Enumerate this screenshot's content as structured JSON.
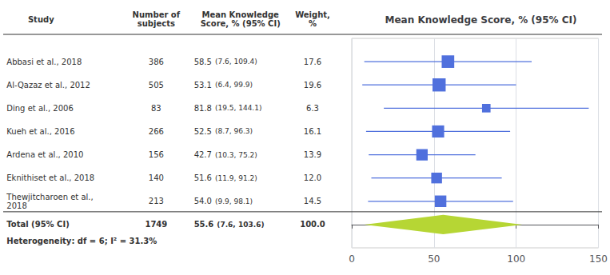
{
  "chart_data": {
    "type": "forest",
    "title": "Mean Knowledge Score, % (95% CI)",
    "columns": [
      "Study",
      "Number of\nsubjects",
      "Mean Knowledge\nScore, % (95% CI)",
      "Weight,\n%"
    ],
    "categories": [
      "Abbasi et al., 2018",
      "Al-Qazaz et al., 2012",
      "Ding et al., 2006",
      "Kueh et al., 2016",
      "Ardena et al., 2010",
      "Eknithiset et al., 2018",
      "Thewjitcharoen et al.,\n2018"
    ],
    "n": [
      386,
      505,
      83,
      266,
      156,
      140,
      213
    ],
    "values": [
      58.5,
      53.1,
      81.8,
      52.5,
      42.7,
      51.6,
      54.0
    ],
    "value_labels": [
      "58.5",
      "53.1",
      "81.8",
      "52.5",
      "42.7",
      "51.6",
      "54.0"
    ],
    "ci_low": [
      7.6,
      6.4,
      19.5,
      8.7,
      10.3,
      11.9,
      9.9
    ],
    "ci_high": [
      109.4,
      99.9,
      144.1,
      96.3,
      75.2,
      91.2,
      98.1
    ],
    "ci_labels": [
      "(7.6, 109.4)",
      "(6.4, 99.9)",
      "(19.5, 144.1)",
      "(8.7, 96.3)",
      "(10.3, 75.2)",
      "(11.9, 91.2)",
      "(9.9, 98.1)"
    ],
    "weights": [
      17.6,
      19.6,
      6.3,
      16.1,
      13.9,
      12.0,
      14.5
    ],
    "weight_labels": [
      "17.6",
      "19.6",
      "6.3",
      "16.1",
      "13.9",
      "12.0",
      "14.5"
    ],
    "total": {
      "label": "Total (95% CI)",
      "n": 1749,
      "value": 55.6,
      "value_label": "55.6",
      "ci_low": 7.6,
      "ci_high": 103.6,
      "ci_label": "(7.6, 103.6)",
      "weight_label": "100.0"
    },
    "heterogeneity": "Heterogeneity: df = 6; I² = 31.3%",
    "xlim": [
      0,
      150
    ],
    "xticks": [
      0,
      50,
      100,
      150
    ],
    "grid": true
  }
}
